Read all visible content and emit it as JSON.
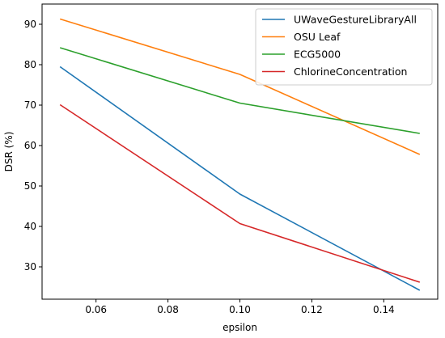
{
  "chart_data": {
    "type": "line",
    "title": "",
    "xlabel": "epsilon",
    "ylabel": "DSR (%)",
    "xlim": [
      0.045,
      0.155
    ],
    "ylim": [
      22,
      95
    ],
    "x": [
      0.05,
      0.1,
      0.15
    ],
    "xticks": [
      0.06,
      0.08,
      0.1,
      0.12,
      0.14
    ],
    "xtick_labels": [
      "0.06",
      "0.08",
      "0.10",
      "0.12",
      "0.14"
    ],
    "yticks": [
      30,
      40,
      50,
      60,
      70,
      80,
      90
    ],
    "ytick_labels": [
      "30",
      "40",
      "50",
      "60",
      "70",
      "80",
      "90"
    ],
    "grid": false,
    "legend_position": "top-right",
    "series": [
      {
        "name": "UWaveGestureLibraryAll",
        "color": "#1f77b4",
        "values": [
          79.5,
          48.0,
          24.2
        ]
      },
      {
        "name": "OSU Leaf",
        "color": "#ff7f0e",
        "values": [
          91.3,
          77.6,
          57.8
        ]
      },
      {
        "name": "ECG5000",
        "color": "#2ca02c",
        "values": [
          84.2,
          70.5,
          63.0
        ]
      },
      {
        "name": "ChlorineConcentration",
        "color": "#d62728",
        "values": [
          70.1,
          40.7,
          26.2
        ]
      }
    ]
  }
}
